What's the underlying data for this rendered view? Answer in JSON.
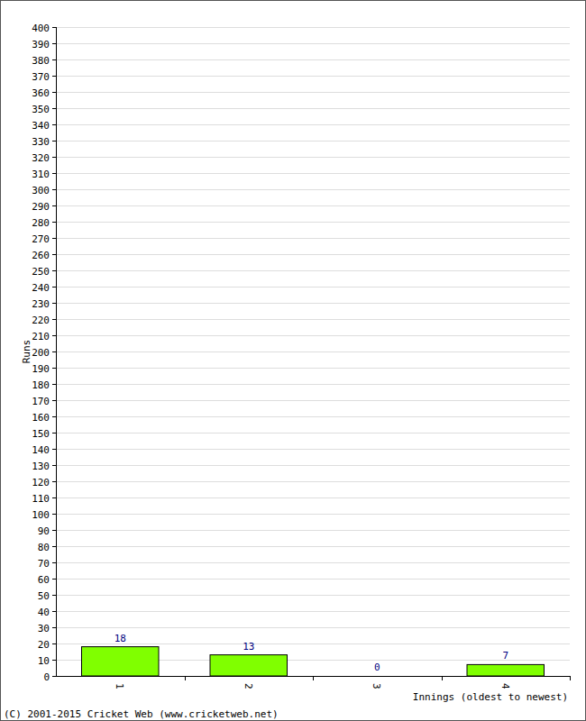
{
  "chart_data": {
    "type": "bar",
    "x_label": "Innings (oldest to newest)",
    "y_label": "Runs",
    "annotations": [
      "(C) 2001-2015 Cricket Web (www.cricketweb.net)"
    ],
    "categories": [
      "1",
      "2",
      "3",
      "4"
    ],
    "values": [
      18,
      13,
      0,
      7
    ],
    "color": "#80ff00",
    "ylim": [
      0,
      400
    ],
    "yticks": [
      0,
      10,
      20,
      30,
      40,
      50,
      60,
      70,
      80,
      90,
      100,
      110,
      120,
      130,
      140,
      150,
      160,
      170,
      180,
      190,
      200,
      210,
      220,
      230,
      240,
      250,
      260,
      270,
      280,
      290,
      300,
      310,
      320,
      330,
      340,
      350,
      360,
      370,
      380,
      390,
      400
    ],
    "grid": true,
    "data_labels": true
  }
}
